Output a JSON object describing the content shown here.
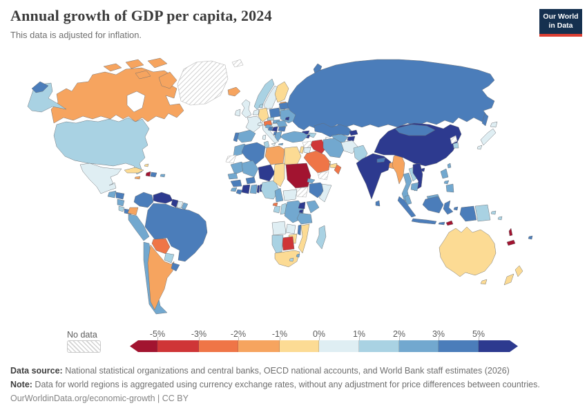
{
  "header": {
    "title": "Annual growth of GDP per capita, 2024",
    "subtitle": "This data is adjusted for inflation.",
    "logo": {
      "line1": "Our World",
      "line2": "in Data"
    }
  },
  "legend": {
    "no_data_label": "No data",
    "ticks": [
      "-5%",
      "-3%",
      "-2%",
      "-1%",
      "0%",
      "1%",
      "2%",
      "3%",
      "5%"
    ],
    "bins": [
      {
        "key": "lt_neg5",
        "label": "less than -5%",
        "color": "#A21430"
      },
      {
        "key": "neg5_neg3",
        "label": "-5% to -3%",
        "color": "#CF3537"
      },
      {
        "key": "neg3_neg2",
        "label": "-3% to -2%",
        "color": "#EF7547"
      },
      {
        "key": "neg2_neg1",
        "label": "-2% to -1%",
        "color": "#F6A45F"
      },
      {
        "key": "neg1_0",
        "label": "-1% to 0%",
        "color": "#FCDB94"
      },
      {
        "key": "p0_1",
        "label": "0% to 1%",
        "color": "#DFEEF3"
      },
      {
        "key": "p1_2",
        "label": "1% to 2%",
        "color": "#A9D2E3"
      },
      {
        "key": "p2_3",
        "label": "2% to 3%",
        "color": "#72A8CF"
      },
      {
        "key": "p3_5",
        "label": "3% to 5%",
        "color": "#4B7DBA"
      },
      {
        "key": "gt5",
        "label": "more than 5%",
        "color": "#2D3A8F"
      }
    ],
    "segment_widths": [
      40,
      60,
      57,
      60,
      57,
      58,
      58,
      57,
      58,
      57
    ]
  },
  "footer": {
    "source_label": "Data source:",
    "source_text": " National statistical organizations and central banks, OECD national accounts, and World Bank staff estimates (2026)",
    "note_label": "Note:",
    "note_text": " Data for world regions is aggregated using currency exchange rates, without any adjustment for price differences between countries.",
    "citation": "OurWorldinData.org/economic-growth | CC BY"
  },
  "chart_data": {
    "type": "choropleth_map",
    "title": "Annual growth of GDP per capita, 2024",
    "subtitle": "This data is adjusted for inflation.",
    "unit": "%",
    "legend_bins": [
      "<-5%",
      "-5--3%",
      "-3--2%",
      "-2--1%",
      "-1-0%",
      "0-1%",
      "1-2%",
      "2-3%",
      "3-5%",
      ">5%",
      "No data"
    ],
    "values": {
      "greenland": "nodata",
      "canada": "neg2_neg1",
      "alaska": "p1_2",
      "usa": "p1_2",
      "mexico": "p0_1",
      "guatemala": "p2_3",
      "honduras": "p3_5",
      "nicaragua": "p2_3",
      "costa-rica": "p1_2",
      "panama": "p3_5",
      "cuba": "neg1_0",
      "haiti": "lt_neg5",
      "dominican-republic": "p3_5",
      "jamaica": "neg2_neg1",
      "puerto-rico": "p2_3",
      "bahamas": "neg1_0",
      "colombia": "p3_5",
      "venezuela": "gt5",
      "guyana": "gt5",
      "suriname": "p0_1",
      "french-guiana": "p2_3",
      "ecuador": "neg2_neg1",
      "peru": "p2_3",
      "brazil": "p3_5",
      "bolivia": "neg3_neg2",
      "paraguay": "p1_2",
      "chile": "p2_3",
      "argentina": "neg2_neg1",
      "uruguay": "p3_5",
      "iceland": "neg2_neg1",
      "norway": "p1_2",
      "sweden": "p0_1",
      "finland": "neg1_0",
      "denmark": "p1_2",
      "estonia": "neg2_neg1",
      "latvia": "p0_1",
      "lithuania": "p1_2",
      "uk": "p0_1",
      "ireland": "p0_1",
      "benelux": "p0_1",
      "germany": "neg1_0",
      "france": "p0_1",
      "spain": "p2_3",
      "portugal": "p3_5",
      "italy": "p0_1",
      "switzerland": "p0_1",
      "austria": "neg3_neg2",
      "czechia": "p1_2",
      "poland": "p3_5",
      "slovakia": "p2_3",
      "hungary": "p0_1",
      "ukraine": "p2_3",
      "belarus": "p3_5",
      "moldova": "gt5",
      "romania": "p2_3",
      "serbia": "gt5",
      "bosnia": "p3_5",
      "croatia": "p2_3",
      "bulgaria": "p3_5",
      "albania": "p3_5",
      "greece": "p2_3",
      "svalbard": "nodata",
      "novaya-zemlya": "p3_5",
      "severnaya": "p3_5",
      "russia": "p3_5",
      "chukotka": "p3_5",
      "sakhalin": "p3_5",
      "georgia": "gt5",
      "azerbaijan": "p1_2",
      "armenia": "gt5",
      "kazakhstan": "p3_5",
      "uzbekistan": "p2_3",
      "turkmenistan": "nodata",
      "kyrgyzstan": "gt5",
      "tajikistan": "gt5",
      "turkey": "p2_3",
      "syria": "nodata",
      "israel": "neg1_0",
      "jordan": "p0_1",
      "iraq": "neg5_neg3",
      "iran": "p2_3",
      "afghanistan": "p0_1",
      "pakistan": "p1_2",
      "saudi-arabia": "neg3_neg2",
      "qatar": "neg1_0",
      "uae": "neg1_0",
      "oman": "neg3_neg2",
      "yemen": "nodata",
      "morocco": "p2_3",
      "western-sahara": "nodata",
      "algeria": "p3_5",
      "tunisia": "p1_2",
      "libya": "neg2_neg1",
      "egypt": "neg1_0",
      "mauritania": "p2_3",
      "senegal": "p2_3",
      "guinea": "p3_5",
      "sierra-leone": "p2_3",
      "liberia": "p3_5",
      "mali": "p2_3",
      "burkina-faso": "p3_5",
      "cote-divoire": "gt5",
      "ghana": "p2_3",
      "togo": "gt5",
      "benin": "gt5",
      "niger": "gt5",
      "nigeria": "p1_2",
      "chad": "neg1_0",
      "sudan": "lt_neg5",
      "south-sudan": "nodata",
      "eritrea": "p2_3",
      "ethiopia": "p3_5",
      "somalia": "p0_1",
      "cameroon": "p2_3",
      "central-african-republic": "p0_1",
      "equatorial-guinea": "neg3_neg2",
      "gabon": "p1_2",
      "congo": "p1_2",
      "drc": "p2_3",
      "uganda": "gt5",
      "kenya": "p2_3",
      "rwanda": "gt5",
      "tanzania": "p2_3",
      "angola": "p0_1",
      "zambia": "p0_1",
      "malawi": "p3_5",
      "mozambique": "neg1_0",
      "zimbabwe": "neg1_0",
      "botswana": "neg5_neg3",
      "namibia": "p1_2",
      "south-africa": "neg1_0",
      "lesotho": "p1_2",
      "eswatini": "p2_3",
      "madagascar": "p1_2",
      "india": "gt5",
      "nepal": "p3_5",
      "sri-lanka": "p3_5",
      "bangladesh": "neg2_neg1",
      "myanmar": "neg2_neg1",
      "china": "gt5",
      "mongolia": "p3_5",
      "hainan": "gt5",
      "taiwan": "p2_3",
      "north-korea": "nodata",
      "south-korea": "p1_2",
      "japan": "p0_1",
      "thailand": "p2_3",
      "laos": "p1_2",
      "vietnam": "gt5",
      "cambodia": "p2_3",
      "malaysia": "p2_3",
      "philippines": "p2_3",
      "indonesia": "p3_5",
      "timor": "lt_neg5",
      "papua-new-guinea": "p1_2",
      "solomon-islands": "p1_2",
      "vanuatu": "lt_neg5",
      "new-caledonia": "lt_neg5",
      "fiji": "p3_5",
      "australia": "neg1_0",
      "new-zealand": "neg1_0"
    }
  }
}
